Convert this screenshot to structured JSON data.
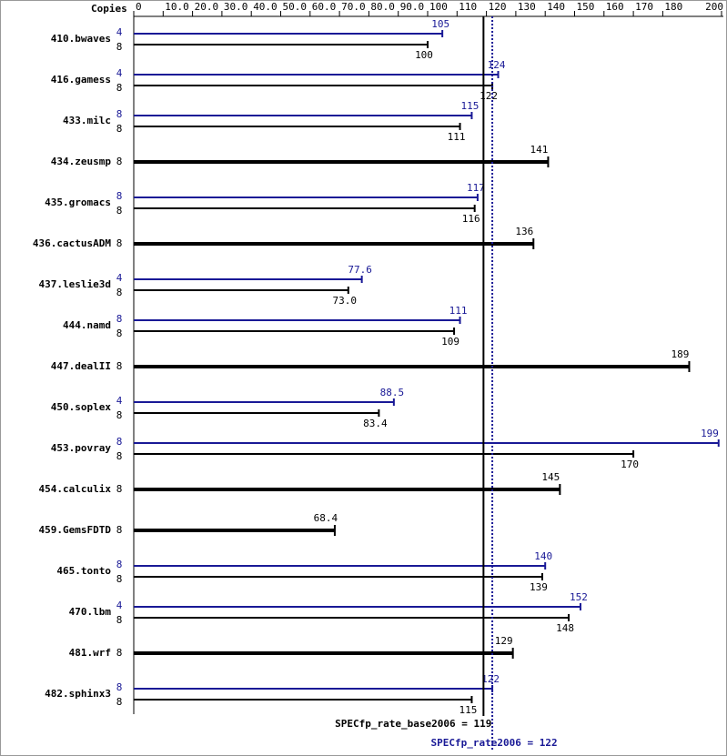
{
  "chart_data": {
    "type": "bar",
    "orientation": "horizontal",
    "axis_label": "Copies",
    "categories": [
      "410.bwaves",
      "416.gamess",
      "433.milc",
      "434.zeusmp",
      "435.gromacs",
      "436.cactusADM",
      "437.leslie3d",
      "444.namd",
      "447.dealII",
      "450.soplex",
      "453.povray",
      "454.calculix",
      "459.GemsFDTD",
      "465.tonto",
      "470.lbm",
      "481.wrf",
      "482.sphinx3"
    ],
    "series": [
      {
        "color": "#191996",
        "copies": [
          4,
          4,
          8,
          null,
          8,
          null,
          4,
          8,
          null,
          4,
          8,
          null,
          null,
          8,
          4,
          null,
          8
        ],
        "values": [
          105,
          124,
          115,
          null,
          117,
          null,
          77.6,
          111,
          null,
          88.5,
          199,
          null,
          null,
          140,
          152,
          null,
          122
        ]
      },
      {
        "color": "#000000",
        "copies": [
          8,
          8,
          8,
          8,
          8,
          8,
          8,
          8,
          8,
          8,
          8,
          8,
          8,
          8,
          8,
          8,
          8
        ],
        "values": [
          100,
          122,
          111,
          141,
          116,
          136,
          73.0,
          109,
          189,
          83.4,
          170,
          145,
          68.4,
          139,
          148,
          129,
          115
        ],
        "value_labels": [
          "100",
          "122",
          "111",
          "141",
          "116",
          "136",
          "73.0",
          "109",
          "189",
          "83.4",
          "170",
          "145",
          "68.4",
          "139",
          "148",
          "129",
          "115"
        ]
      }
    ],
    "xlim": [
      0,
      200
    ],
    "xticks": [
      0,
      {
        "value": 10,
        "label": "10.0"
      },
      {
        "value": 20,
        "label": "20.0"
      },
      {
        "value": 30,
        "label": "30.0"
      },
      {
        "value": 40,
        "label": "40.0"
      },
      {
        "value": 50,
        "label": "50.0"
      },
      {
        "value": 60,
        "label": "60.0"
      },
      {
        "value": 70,
        "label": "70.0"
      },
      {
        "value": 80,
        "label": "80.0"
      },
      {
        "value": 90,
        "label": "90.0"
      },
      100,
      110,
      120,
      130,
      140,
      150,
      160,
      170,
      180,
      200
    ],
    "reference_lines": [
      {
        "label": "SPECfp_rate_base2006 = 119",
        "value": 119,
        "color": "#000000",
        "style": "solid"
      },
      {
        "label": "SPECfp_rate2006 = 122",
        "value": 122,
        "color": "#191996",
        "style": "dotted"
      }
    ]
  }
}
